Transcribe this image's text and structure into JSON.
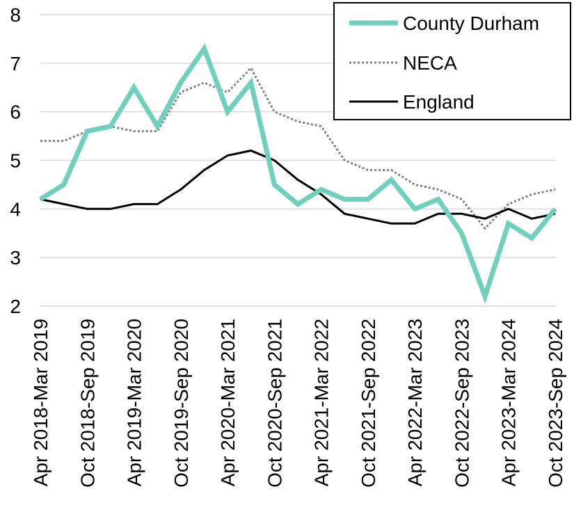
{
  "chart_data": {
    "type": "line",
    "title": "",
    "xlabel": "",
    "ylabel": "",
    "ylim": [
      2,
      8
    ],
    "yticks": [
      2,
      3,
      4,
      5,
      6,
      7,
      8
    ],
    "grid": "horizontal",
    "legend_position": "top-right",
    "x_tick_labels": [
      "Apr 2018-Mar 2019",
      "Oct 2018-Sep 2019",
      "Apr 2019-Mar 2020",
      "Oct 2019-Sep 2020",
      "Apr 2020-Mar 2021",
      "Oct 2020-Sep 2021",
      "Apr 2021-Mar 2022",
      "Oct 2021-Sep 2022",
      "Apr 2022-Mar 2023",
      "Oct 2022-Sep 2023",
      "Apr 2023-Mar 2024",
      "Oct 2023-Sep 2024"
    ],
    "num_points": 23,
    "series": [
      {
        "name": "County Durham",
        "color": "#6fd0bb",
        "style": "solid-thick",
        "values": [
          4.2,
          4.5,
          5.6,
          5.7,
          6.5,
          5.7,
          6.6,
          7.3,
          6.0,
          6.6,
          4.5,
          4.1,
          4.4,
          4.2,
          4.2,
          4.6,
          4.0,
          4.2,
          3.5,
          2.2,
          3.7,
          3.4,
          4.0
        ]
      },
      {
        "name": "NECA",
        "color": "#808080",
        "style": "dotted",
        "values": [
          5.4,
          5.4,
          5.6,
          5.7,
          5.6,
          5.6,
          6.4,
          6.6,
          6.4,
          6.9,
          6.0,
          5.8,
          5.7,
          5.0,
          4.8,
          4.8,
          4.5,
          4.4,
          4.2,
          3.6,
          4.1,
          4.3,
          4.4
        ]
      },
      {
        "name": "England",
        "color": "#000000",
        "style": "solid",
        "values": [
          4.2,
          4.1,
          4.0,
          4.0,
          4.1,
          4.1,
          4.4,
          4.8,
          5.1,
          5.2,
          5.0,
          4.6,
          4.3,
          3.9,
          3.8,
          3.7,
          3.7,
          3.9,
          3.9,
          3.8,
          4.0,
          3.8,
          3.9
        ]
      }
    ]
  }
}
